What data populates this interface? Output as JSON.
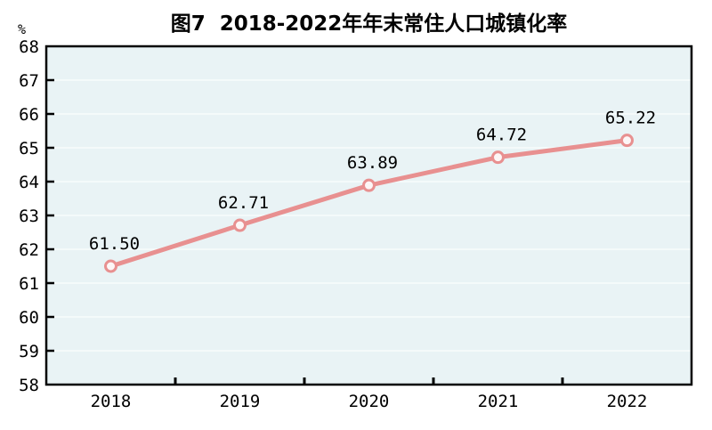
{
  "chart_data": {
    "type": "line",
    "title": "图7  2018-2022年年末常住人口城镇化率",
    "unit_label": "%",
    "categories": [
      "2018",
      "2019",
      "2020",
      "2021",
      "2022"
    ],
    "series": [
      {
        "values": [
          61.5,
          62.71,
          63.89,
          64.72,
          65.22
        ],
        "point_labels": [
          "61.50",
          "62.71",
          "63.89",
          "64.72",
          "65.22"
        ]
      }
    ],
    "ylim": [
      58,
      68
    ],
    "ytick_step": 1,
    "yticks": [
      "58",
      "59",
      "60",
      "61",
      "62",
      "63",
      "64",
      "65",
      "66",
      "67",
      "68"
    ],
    "grid": "horizontal",
    "legend": "none",
    "colors": {
      "line": "#e89090",
      "marker_fill": "#fdf6f6",
      "marker_stroke": "#e89090",
      "plot_bg": "#e9f3f5",
      "gridline": "#f8fcfc",
      "axis": "#000000",
      "text": "#000000",
      "page_bg": "#ffffff"
    }
  }
}
